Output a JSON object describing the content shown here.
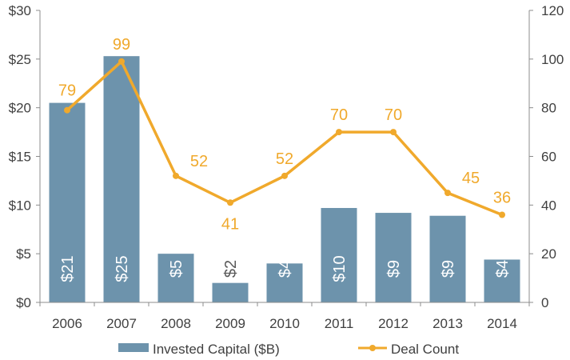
{
  "chart_data": {
    "type": "bar",
    "categories": [
      "2006",
      "2007",
      "2008",
      "2009",
      "2010",
      "2011",
      "2012",
      "2013",
      "2014"
    ],
    "series": [
      {
        "name": "Invested Capital ($B)",
        "type": "bar",
        "axis": "left",
        "values": [
          20.5,
          25.3,
          5.0,
          2.0,
          4.0,
          9.7,
          9.2,
          8.9,
          4.4
        ],
        "labels": [
          "$21",
          "$25",
          "$5",
          "$2",
          "$4",
          "$10",
          "$9",
          "$9",
          "$4"
        ],
        "color": "#6d93ac"
      },
      {
        "name": "Deal Count",
        "type": "line",
        "axis": "right",
        "values": [
          79,
          99,
          52,
          41,
          52,
          70,
          70,
          45,
          36
        ],
        "labels": [
          "79",
          "99",
          "52",
          "41",
          "52",
          "70",
          "70",
          "45",
          "36"
        ],
        "color": "#f0a92c"
      }
    ],
    "y_left": {
      "min": 0,
      "max": 30,
      "ticks": [
        "$0",
        "$5",
        "$10",
        "$15",
        "$20",
        "$25",
        "$30"
      ]
    },
    "y_right": {
      "min": 0,
      "max": 120,
      "ticks": [
        "0",
        "20",
        "40",
        "60",
        "80",
        "100",
        "120"
      ]
    },
    "grid": false,
    "legend": "bottom"
  }
}
